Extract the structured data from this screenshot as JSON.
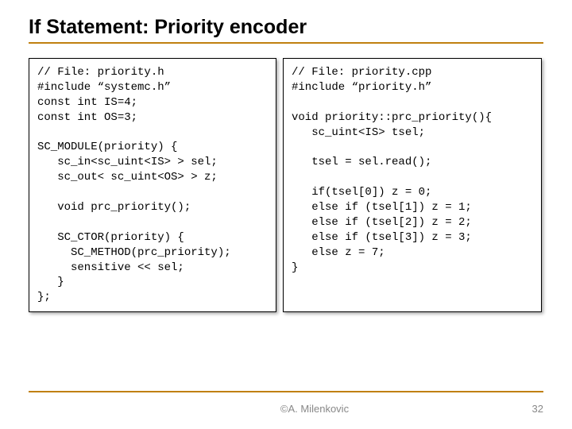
{
  "title": "If Statement: Priority encoder",
  "codeLeft": "// File: priority.h\n#include “systemc.h”\nconst int IS=4;\nconst int OS=3;\n\nSC_MODULE(priority) {\n   sc_in<sc_uint<IS> > sel;\n   sc_out< sc_uint<OS> > z;\n\n   void prc_priority();\n\n   SC_CTOR(priority) {\n     SC_METHOD(prc_priority);\n     sensitive << sel;\n   }\n};",
  "codeRight": "// File: priority.cpp\n#include “priority.h”\n\nvoid priority::prc_priority(){\n   sc_uint<IS> tsel;\n\n   tsel = sel.read();\n\n   if(tsel[0]) z = 0;\n   else if (tsel[1]) z = 1;\n   else if (tsel[2]) z = 2;\n   else if (tsel[3]) z = 3;\n   else z = 7;\n}",
  "footer": "©A. Milenkovic",
  "pageNumber": "32",
  "colors": {
    "accent": "#c08010",
    "footerText": "#888888",
    "background": "#ffffff",
    "codeBorder": "#000000"
  },
  "fonts": {
    "titleSize": 25,
    "codeSize": 14,
    "footerSize": 13,
    "titleFamily": "Arial",
    "codeFamily": "Courier New"
  },
  "layout": {
    "slideWidth": 720,
    "slideHeight": 540,
    "leftBoxWidth": 312,
    "rightBoxWidth": 326
  }
}
